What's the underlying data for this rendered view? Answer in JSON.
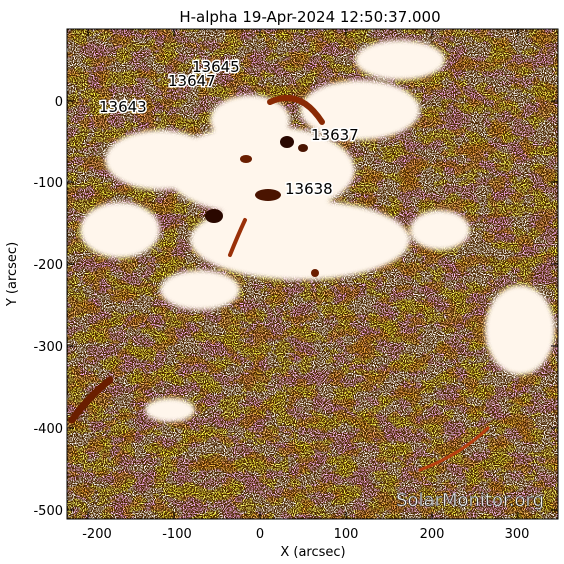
{
  "title": "H-alpha 19-Apr-2024 12:50:37.000",
  "xlabel": "X (arcsec)",
  "ylabel": "Y (arcsec)",
  "x_ticks": [
    "-200",
    "-100",
    "0",
    "100",
    "200",
    "300"
  ],
  "y_ticks": [
    "0",
    "-100",
    "-200",
    "-300",
    "-400",
    "-500"
  ],
  "active_regions": [
    {
      "label": "13645"
    },
    {
      "label": "13647"
    },
    {
      "label": "13643"
    },
    {
      "label": "13637"
    },
    {
      "label": "13638"
    }
  ],
  "watermark": "SolarMonitor.org",
  "colors": {
    "bright": "#fff3e6",
    "mid": "#f07418",
    "dark": "#5a1800",
    "noise": "#120400"
  }
}
